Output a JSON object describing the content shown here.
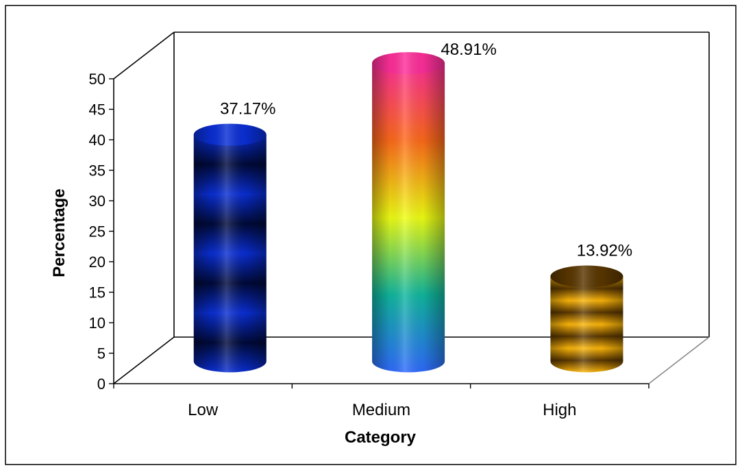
{
  "chart_data": {
    "type": "bar",
    "style": "3d-cylinder",
    "categories": [
      "Low",
      "Medium",
      "High"
    ],
    "values": [
      37.17,
      48.91,
      13.92
    ],
    "data_labels": [
      "37.17%",
      "48.91%",
      "13.92%"
    ],
    "xlabel": "Category",
    "ylabel": "Percentage",
    "ylim": [
      0,
      50
    ],
    "yticks": [
      0,
      5,
      10,
      15,
      20,
      25,
      30,
      35,
      40,
      45,
      50
    ],
    "grid": false,
    "legend": "none",
    "colors": {
      "Low": [
        "#000a3a",
        "#0a2fd6",
        "#2a6bff"
      ],
      "Medium": [
        "#ff2f9a",
        "#ff6a1a",
        "#f0ff12",
        "#10b8a0",
        "#2f6bff"
      ],
      "High": [
        "#5a3700",
        "#ffb80a",
        "#ffd24a"
      ]
    }
  }
}
